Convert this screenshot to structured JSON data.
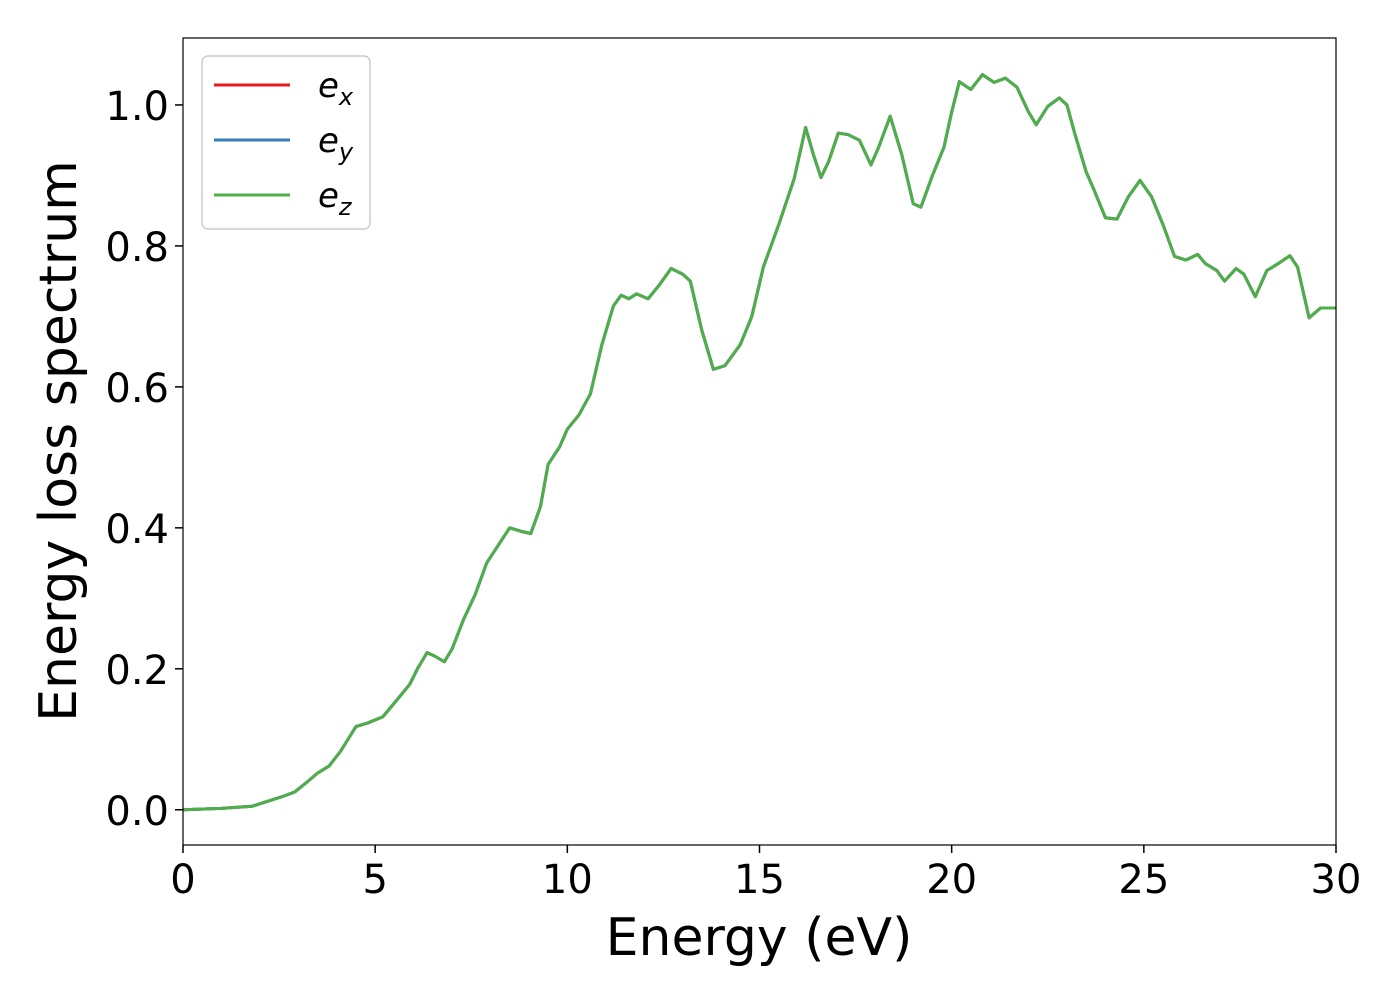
{
  "chart_data": {
    "type": "line",
    "xlabel": "Energy (eV)",
    "ylabel": "Energy loss spectrum",
    "xlim": [
      0,
      30
    ],
    "ylim": [
      -0.05,
      1.095
    ],
    "xticks": [
      0,
      5,
      10,
      15,
      20,
      25,
      30
    ],
    "yticks": [
      {
        "value": 0,
        "label": "0.0"
      },
      0.2,
      0.4,
      0.6,
      0.8,
      {
        "value": 1,
        "label": "1.0"
      }
    ],
    "legend": "upper left",
    "grid": false,
    "x": [
      0,
      1,
      1.8,
      2.2,
      2.6,
      2.9,
      3.2,
      3.5,
      3.8,
      4.1,
      4.5,
      4.8,
      5.2,
      5.6,
      5.9,
      6.1,
      6.35,
      6.55,
      6.8,
      7.0,
      7.3,
      7.6,
      7.9,
      8.2,
      8.5,
      8.8,
      9.05,
      9.3,
      9.5,
      9.8,
      10.0,
      10.3,
      10.6,
      10.9,
      11.2,
      11.4,
      11.6,
      11.8,
      12.1,
      12.4,
      12.7,
      13.0,
      13.2,
      13.5,
      13.8,
      14.1,
      14.5,
      14.8,
      15.1,
      15.5,
      15.9,
      16.2,
      16.4,
      16.6,
      16.8,
      17.05,
      17.3,
      17.6,
      17.9,
      18.1,
      18.4,
      18.7,
      19.0,
      19.2,
      19.5,
      19.8,
      20.0,
      20.2,
      20.5,
      20.8,
      21.1,
      21.4,
      21.7,
      22.0,
      22.2,
      22.5,
      22.8,
      23.0,
      23.2,
      23.5,
      23.7,
      24.0,
      24.3,
      24.6,
      24.9,
      25.2,
      25.5,
      25.8,
      26.1,
      26.4,
      26.6,
      26.9,
      27.1,
      27.4,
      27.6,
      27.9,
      28.2,
      28.5,
      28.8,
      29.0,
      29.3,
      29.6,
      30
    ],
    "series": [
      {
        "name": "e_x",
        "color": "#e41a1c",
        "values": [
          0,
          0.002,
          0.005,
          0.012,
          0.019,
          0.025,
          0.038,
          0.052,
          0.062,
          0.083,
          0.118,
          0.123,
          0.132,
          0.158,
          0.178,
          0.2,
          0.223,
          0.218,
          0.21,
          0.228,
          0.27,
          0.305,
          0.35,
          0.375,
          0.4,
          0.395,
          0.392,
          0.43,
          0.49,
          0.515,
          0.54,
          0.56,
          0.59,
          0.66,
          0.715,
          0.73,
          0.725,
          0.732,
          0.725,
          0.745,
          0.768,
          0.76,
          0.75,
          0.68,
          0.625,
          0.63,
          0.66,
          0.7,
          0.77,
          0.83,
          0.895,
          0.968,
          0.93,
          0.897,
          0.92,
          0.96,
          0.958,
          0.95,
          0.915,
          0.94,
          0.984,
          0.93,
          0.86,
          0.855,
          0.9,
          0.94,
          0.99,
          1.033,
          1.022,
          1.043,
          1.032,
          1.038,
          1.025,
          0.99,
          0.972,
          0.998,
          1.01,
          1.0,
          0.96,
          0.905,
          0.88,
          0.84,
          0.838,
          0.87,
          0.893,
          0.87,
          0.83,
          0.785,
          0.78,
          0.788,
          0.775,
          0.765,
          0.75,
          0.768,
          0.76,
          0.728,
          0.765,
          0.775,
          0.786,
          0.77,
          0.698,
          0.712,
          0.712
        ]
      },
      {
        "name": "e_y",
        "color": "#377eb8",
        "values": [
          0,
          0.002,
          0.005,
          0.012,
          0.019,
          0.025,
          0.038,
          0.052,
          0.062,
          0.083,
          0.118,
          0.123,
          0.132,
          0.158,
          0.178,
          0.2,
          0.223,
          0.218,
          0.21,
          0.228,
          0.27,
          0.305,
          0.35,
          0.375,
          0.4,
          0.395,
          0.392,
          0.43,
          0.49,
          0.515,
          0.54,
          0.56,
          0.59,
          0.66,
          0.715,
          0.73,
          0.725,
          0.732,
          0.725,
          0.745,
          0.768,
          0.76,
          0.75,
          0.68,
          0.625,
          0.63,
          0.66,
          0.7,
          0.77,
          0.83,
          0.895,
          0.968,
          0.93,
          0.897,
          0.92,
          0.96,
          0.958,
          0.95,
          0.915,
          0.94,
          0.984,
          0.93,
          0.86,
          0.855,
          0.9,
          0.94,
          0.99,
          1.033,
          1.022,
          1.043,
          1.032,
          1.038,
          1.025,
          0.99,
          0.972,
          0.998,
          1.01,
          1.0,
          0.96,
          0.905,
          0.88,
          0.84,
          0.838,
          0.87,
          0.893,
          0.87,
          0.83,
          0.785,
          0.78,
          0.788,
          0.775,
          0.765,
          0.75,
          0.768,
          0.76,
          0.728,
          0.765,
          0.775,
          0.786,
          0.77,
          0.698,
          0.712,
          0.712
        ]
      },
      {
        "name": "e_z",
        "color": "#4daf4a",
        "values": [
          0,
          0.002,
          0.005,
          0.012,
          0.019,
          0.025,
          0.038,
          0.052,
          0.062,
          0.083,
          0.118,
          0.123,
          0.132,
          0.158,
          0.178,
          0.2,
          0.223,
          0.218,
          0.21,
          0.228,
          0.27,
          0.305,
          0.35,
          0.375,
          0.4,
          0.395,
          0.392,
          0.43,
          0.49,
          0.515,
          0.54,
          0.56,
          0.59,
          0.66,
          0.715,
          0.73,
          0.725,
          0.732,
          0.725,
          0.745,
          0.768,
          0.76,
          0.75,
          0.68,
          0.625,
          0.63,
          0.66,
          0.7,
          0.77,
          0.83,
          0.895,
          0.968,
          0.93,
          0.897,
          0.92,
          0.96,
          0.958,
          0.95,
          0.915,
          0.94,
          0.984,
          0.93,
          0.86,
          0.855,
          0.9,
          0.94,
          0.99,
          1.033,
          1.022,
          1.043,
          1.032,
          1.038,
          1.025,
          0.99,
          0.972,
          0.998,
          1.01,
          1.0,
          0.96,
          0.905,
          0.88,
          0.84,
          0.838,
          0.87,
          0.893,
          0.87,
          0.83,
          0.785,
          0.78,
          0.788,
          0.775,
          0.765,
          0.75,
          0.768,
          0.76,
          0.728,
          0.765,
          0.775,
          0.786,
          0.77,
          0.698,
          0.712,
          0.712
        ]
      }
    ]
  }
}
